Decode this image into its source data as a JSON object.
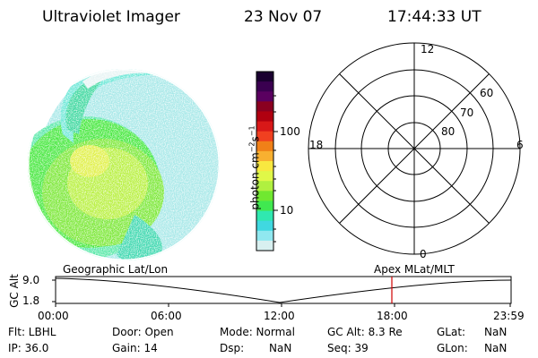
{
  "header": {
    "instrument": "Ultraviolet Imager",
    "date": "23 Nov 07",
    "time": "17:44:33 UT"
  },
  "colorbar": {
    "unit_label": "photon cm",
    "unit_exp1": "−2",
    "unit_s": "s",
    "unit_exp2": "−1",
    "ticks": [
      "100",
      "10"
    ],
    "colors": [
      "#1a0030",
      "#3a0050",
      "#5a0060",
      "#8a0020",
      "#b00010",
      "#d81818",
      "#f04020",
      "#f08018",
      "#f8b030",
      "#f8e840",
      "#e0f848",
      "#b0f040",
      "#70e830",
      "#40e850",
      "#30e8b0",
      "#40d8e0",
      "#90e8f0",
      "#d8f0f0"
    ]
  },
  "polar": {
    "mlt_labels": {
      "top": "12",
      "bottom": "0",
      "left": "18",
      "right": "6"
    },
    "lat_labels": [
      "60",
      "70",
      "80"
    ]
  },
  "timeline": {
    "left_label": "Geographic Lat/Lon",
    "right_label": "Apex  MLat/MLT",
    "y_axis_title": "GC Alt",
    "y_top": "9.0",
    "y_bottom": "1.8",
    "x_ticks": [
      "00:00",
      "06:00",
      "12:00",
      "18:00",
      "23:59"
    ],
    "marker_color": "#d00000"
  },
  "info": {
    "flt": "Flt: LBHL",
    "ip": "IP: 36.0",
    "door": "Door: Open",
    "gain": "Gain: 14",
    "mode": "Mode: Normal",
    "dsp_label": "Dsp:",
    "dsp_value": "NaN",
    "gcalt": "GC Alt: 8.3 Re",
    "seq": "Seq: 39",
    "glat_label": "GLat:",
    "glat_value": "NaN",
    "glon_label": "GLon:",
    "glon_value": "NaN"
  }
}
